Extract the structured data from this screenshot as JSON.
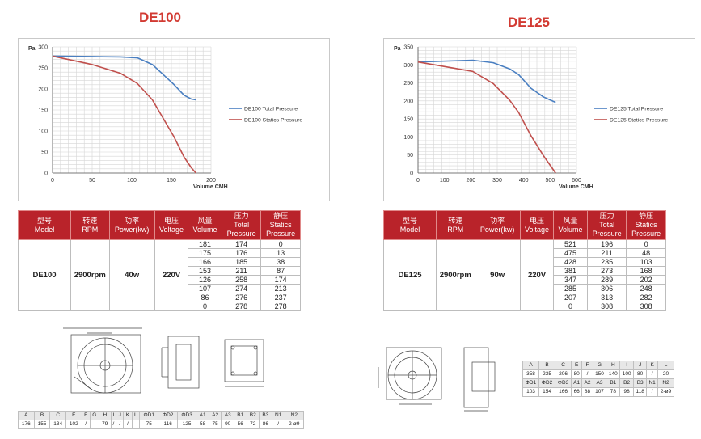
{
  "left": {
    "title": "DE100",
    "chart_data": {
      "type": "line",
      "title": "DE100",
      "ylabel": "Pa",
      "xlabel": "Volume CMH",
      "xlim": [
        0,
        200
      ],
      "ylim": [
        0,
        300
      ],
      "xticks": [
        "0",
        "50",
        "100",
        "150",
        "200"
      ],
      "yticks": [
        "0",
        "50",
        "100",
        "150",
        "200",
        "250",
        "300"
      ],
      "series": [
        {
          "name": "DE100 Total Pressure",
          "color": "#4a7fc1",
          "x": [
            0,
            50,
            86,
            107,
            126,
            153,
            166,
            175,
            181
          ],
          "y": [
            278,
            277,
            276,
            274,
            258,
            211,
            185,
            176,
            174
          ]
        },
        {
          "name": "DE100 Statics Pressure",
          "color": "#c0504d",
          "x": [
            0,
            50,
            86,
            107,
            126,
            153,
            166,
            175,
            181
          ],
          "y": [
            278,
            258,
            237,
            213,
            174,
            87,
            38,
            13,
            0
          ]
        }
      ]
    },
    "headers": [
      [
        "型号",
        "Model"
      ],
      [
        "转速",
        "RPM"
      ],
      [
        "功率",
        "Power(kw)"
      ],
      [
        "电压",
        "Voltage"
      ],
      [
        "风量",
        "Volume"
      ],
      [
        "压力",
        "Total",
        "Pressure"
      ],
      [
        "静压",
        "Statics",
        "Pressure"
      ]
    ],
    "model": "DE100",
    "rpm": "2900rpm",
    "power": "40w",
    "voltage": "220V",
    "rows": [
      [
        "181",
        "174",
        "0"
      ],
      [
        "175",
        "176",
        "13"
      ],
      [
        "166",
        "185",
        "38"
      ],
      [
        "153",
        "211",
        "87"
      ],
      [
        "126",
        "258",
        "174"
      ],
      [
        "107",
        "274",
        "213"
      ],
      [
        "86",
        "276",
        "237"
      ],
      [
        "0",
        "278",
        "278"
      ]
    ],
    "dims": {
      "labels": [
        "A",
        "B",
        "C",
        "E",
        "F",
        "G",
        "H",
        "I",
        "J",
        "K",
        "L",
        "ΦD1",
        "ΦD2",
        "ΦD3",
        "A1",
        "A2",
        "A3",
        "B1",
        "B2",
        "B3",
        "N1",
        "N2"
      ],
      "values": [
        "176",
        "155",
        "134",
        "102",
        "/",
        "",
        "79",
        "/",
        "/",
        "/",
        "",
        "75",
        "116",
        "125",
        "58",
        "75",
        "90",
        "56",
        "72",
        "86",
        "/",
        "2-ø9"
      ]
    }
  },
  "right": {
    "title": "DE125",
    "chart_data": {
      "type": "line",
      "title": "DE125",
      "ylabel": "Pa",
      "xlabel": "Volume CMH",
      "xlim": [
        0,
        600
      ],
      "ylim": [
        0,
        350
      ],
      "xticks": [
        "0",
        "100",
        "200",
        "300",
        "400",
        "500",
        "600"
      ],
      "yticks": [
        "0",
        "50",
        "100",
        "150",
        "200",
        "250",
        "300",
        "350"
      ],
      "series": [
        {
          "name": "DE125 Total Pressure",
          "color": "#4a7fc1",
          "x": [
            0,
            207,
            285,
            347,
            381,
            428,
            475,
            521
          ],
          "y": [
            308,
            313,
            306,
            289,
            273,
            235,
            211,
            196
          ]
        },
        {
          "name": "DE125 Statics Pressure",
          "color": "#c0504d",
          "x": [
            0,
            207,
            285,
            347,
            381,
            428,
            475,
            521
          ],
          "y": [
            308,
            282,
            248,
            202,
            168,
            103,
            48,
            0
          ]
        }
      ]
    },
    "headers": [
      [
        "型号",
        "Model"
      ],
      [
        "转速",
        "RPM"
      ],
      [
        "功率",
        "Power(kw)"
      ],
      [
        "电压",
        "Voltage"
      ],
      [
        "风量",
        "Volume"
      ],
      [
        "压力",
        "Total",
        "Pressure"
      ],
      [
        "静压",
        "Statics",
        "Pressure"
      ]
    ],
    "model": "DE125",
    "rpm": "2900rpm",
    "power": "90w",
    "voltage": "220V",
    "rows": [
      [
        "521",
        "196",
        "0"
      ],
      [
        "475",
        "211",
        "48"
      ],
      [
        "428",
        "235",
        "103"
      ],
      [
        "381",
        "273",
        "168"
      ],
      [
        "347",
        "289",
        "202"
      ],
      [
        "285",
        "306",
        "248"
      ],
      [
        "207",
        "313",
        "282"
      ],
      [
        "0",
        "308",
        "308"
      ]
    ],
    "dims": {
      "row1_labels": [
        "A",
        "B",
        "C",
        "E",
        "F",
        "G",
        "H",
        "I",
        "J",
        "K",
        "L"
      ],
      "row1_values": [
        "358",
        "235",
        "206",
        "80",
        "/",
        "150",
        "140",
        "100",
        "80",
        "/",
        "20"
      ],
      "row2_labels": [
        "ΦD1",
        "ΦD2",
        "ΦD3",
        "A1",
        "A2",
        "A3",
        "B1",
        "B2",
        "B3",
        "N1",
        "N2"
      ],
      "row2_values": [
        "103",
        "154",
        "166",
        "66",
        "88",
        "107",
        "78",
        "98",
        "118",
        "/",
        "2-ø9"
      ]
    }
  }
}
